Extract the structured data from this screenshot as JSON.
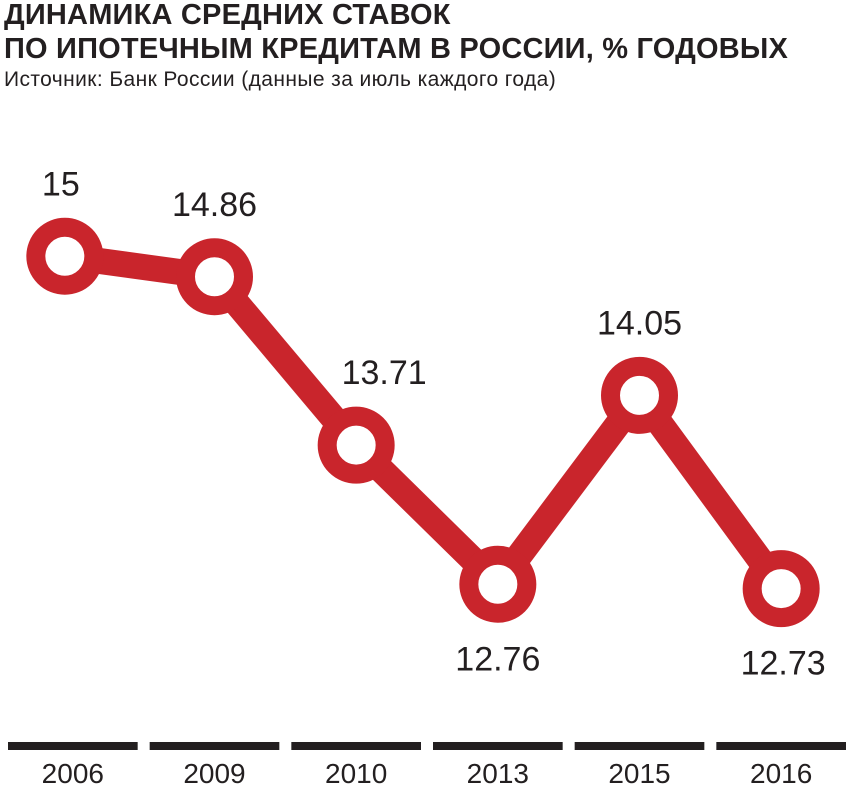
{
  "header": {
    "title_line1": "ДИНАМИКА СРЕДНИХ СТАВОК",
    "title_line2": "ПО ИПОТЕЧНЫМ КРЕДИТАМ В РОССИИ, % ГОДОВЫХ",
    "subtitle": "Источник: Банк России (данные за июль каждого года)"
  },
  "colors": {
    "line": "#c9252c",
    "marker_fill": "#ffffff",
    "text": "#231f20",
    "axis_bar": "#231f20"
  },
  "chart_data": {
    "type": "line",
    "title": "ДИНАМИКА СРЕДНИХ СТАВОК ПО ИПОТЕЧНЫМ КРЕДИТАМ В РОССИИ, % ГОДОВЫХ",
    "subtitle": "Источник: Банк России (данные за июль каждого года)",
    "categories": [
      "2006",
      "2009",
      "2010",
      "2013",
      "2015",
      "2016"
    ],
    "values": [
      15,
      14.86,
      13.71,
      12.76,
      14.05,
      12.73
    ],
    "data_labels": [
      "15",
      "14.86",
      "13.71",
      "12.76",
      "14.05",
      "12.73"
    ],
    "label_placement": [
      "above",
      "above",
      "above",
      "below",
      "above",
      "below"
    ],
    "ylim": [
      12.55,
      15.35
    ],
    "grid": false,
    "legend": "none"
  }
}
